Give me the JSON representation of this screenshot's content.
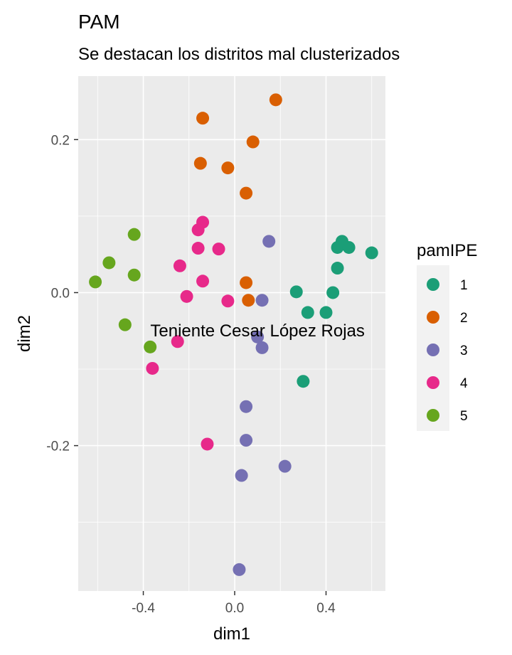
{
  "chart_data": {
    "type": "scatter",
    "title": "PAM",
    "subtitle": "Se destacan los distritos mal clusterizados",
    "xlabel": "dim1",
    "ylabel": "dim2",
    "xlim": [
      -0.685,
      0.66
    ],
    "ylim": [
      -0.39,
      0.283
    ],
    "x_ticks": [
      -0.4,
      0.0,
      0.4
    ],
    "x_tick_labels": [
      "-0.4",
      "0.0",
      "0.4"
    ],
    "y_ticks": [
      -0.2,
      0.0,
      0.2
    ],
    "y_tick_labels": [
      "-0.2",
      "0.0",
      "0.2"
    ],
    "grid": true,
    "legend": {
      "title": "pamIPE",
      "position": "right"
    },
    "series": [
      {
        "name": "1",
        "color": "#1B9E77",
        "points": [
          [
            0.47,
            0.067
          ],
          [
            0.45,
            0.059
          ],
          [
            0.5,
            0.059
          ],
          [
            0.6,
            0.052
          ],
          [
            0.45,
            0.032
          ],
          [
            0.27,
            0.001
          ],
          [
            0.43,
            0.0
          ],
          [
            0.32,
            -0.026
          ],
          [
            0.4,
            -0.026
          ],
          [
            0.3,
            -0.116
          ]
        ]
      },
      {
        "name": "2",
        "color": "#D95F02",
        "points": [
          [
            0.18,
            0.252
          ],
          [
            -0.14,
            0.228
          ],
          [
            0.08,
            0.197
          ],
          [
            -0.15,
            0.169
          ],
          [
            -0.03,
            0.163
          ],
          [
            0.05,
            0.13
          ],
          [
            0.05,
            0.013
          ],
          [
            0.06,
            -0.01
          ]
        ]
      },
      {
        "name": "3",
        "color": "#7570B3",
        "points": [
          [
            0.15,
            0.067
          ],
          [
            0.12,
            -0.01
          ],
          [
            0.1,
            -0.058
          ],
          [
            0.12,
            -0.072
          ],
          [
            0.05,
            -0.149
          ],
          [
            0.05,
            -0.193
          ],
          [
            0.22,
            -0.227
          ],
          [
            0.03,
            -0.239
          ],
          [
            0.02,
            -0.362
          ]
        ]
      },
      {
        "name": "4",
        "color": "#E7298A",
        "points": [
          [
            -0.14,
            0.092
          ],
          [
            -0.16,
            0.082
          ],
          [
            -0.16,
            0.058
          ],
          [
            -0.07,
            0.057
          ],
          [
            -0.24,
            0.035
          ],
          [
            -0.14,
            0.015
          ],
          [
            -0.21,
            -0.005
          ],
          [
            -0.03,
            -0.011
          ],
          [
            -0.25,
            -0.064
          ],
          [
            -0.36,
            -0.099
          ],
          [
            -0.12,
            -0.198
          ]
        ]
      },
      {
        "name": "5",
        "color": "#66A61E",
        "points": [
          [
            -0.44,
            0.076
          ],
          [
            -0.55,
            0.039
          ],
          [
            -0.44,
            0.023
          ],
          [
            -0.61,
            0.014
          ],
          [
            -0.48,
            -0.042
          ],
          [
            -0.37,
            -0.071
          ]
        ]
      }
    ],
    "annotations": [
      {
        "text": "Teniente Cesar López Rojas",
        "x": 0.1,
        "y": -0.05
      }
    ]
  }
}
